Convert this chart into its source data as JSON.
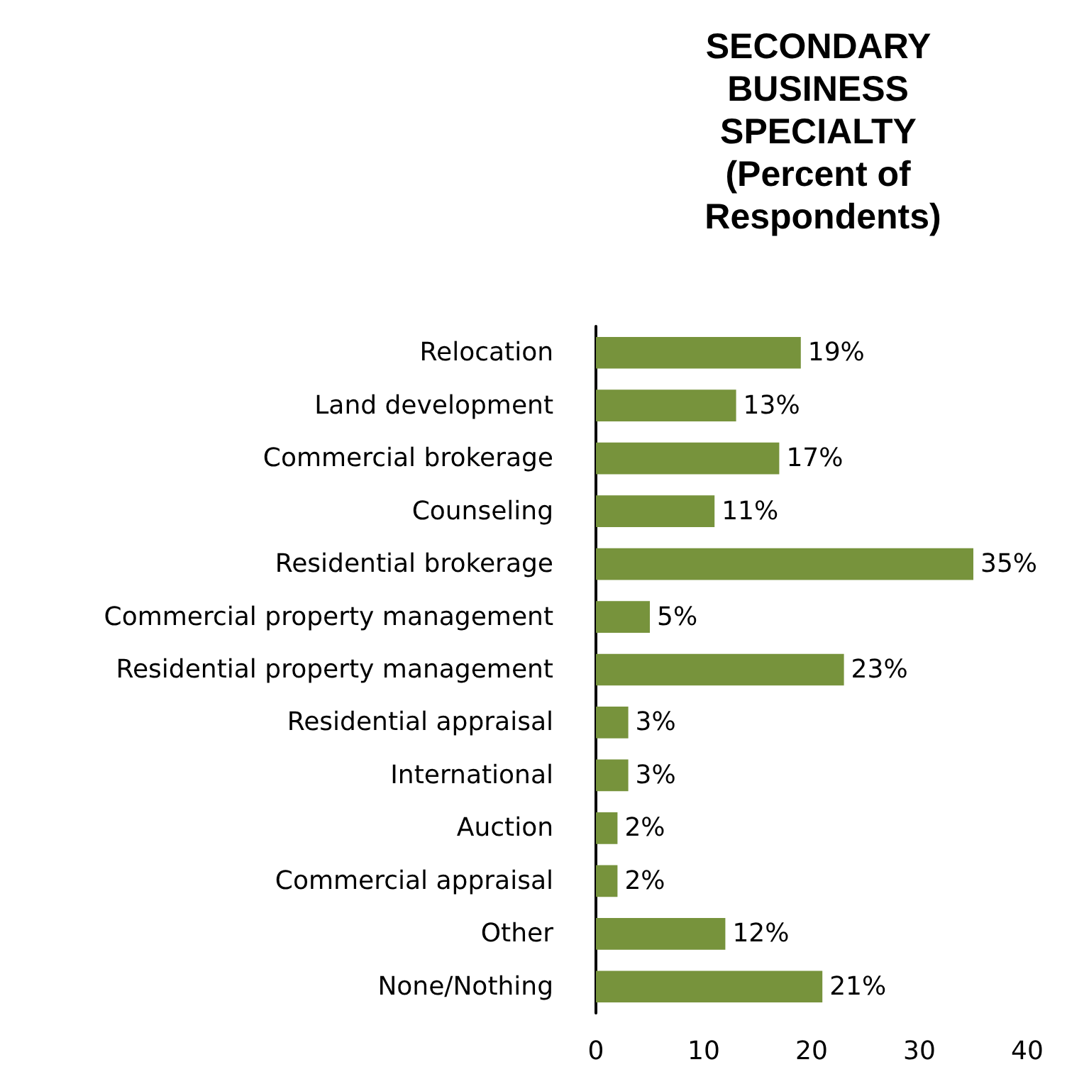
{
  "chart_data": {
    "type": "bar",
    "orientation": "horizontal",
    "title": "SECONDARY BUSINESS SPECIALTY (Percent of Respondents)",
    "categories": [
      "Relocation",
      "Land development",
      "Commercial brokerage",
      "Counseling",
      "Residential brokerage",
      "Commercial property management",
      "Residential property management",
      "Residential appraisal",
      "International",
      "Auction",
      "Commercial appraisal",
      "Other",
      "None/Nothing"
    ],
    "values": [
      19,
      13,
      17,
      11,
      35,
      5,
      23,
      3,
      3,
      2,
      2,
      12,
      21
    ],
    "value_labels": [
      "19%",
      "13%",
      "17%",
      "11%",
      "35%",
      "5%",
      "23%",
      "3%",
      "3%",
      "2%",
      "2%",
      "12%",
      "21%"
    ],
    "color": "#77933c",
    "xlim": [
      0,
      40
    ],
    "xticks": [
      0,
      10,
      20,
      30,
      40
    ],
    "grid": false
  }
}
